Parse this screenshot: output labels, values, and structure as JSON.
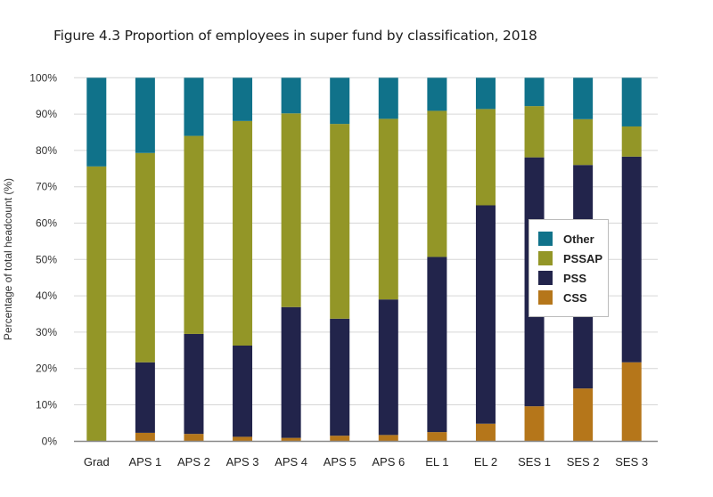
{
  "chart_data": {
    "type": "bar",
    "stacked": true,
    "title": "Figure 4.3 Proportion of employees in super fund by classification, 2018",
    "xlabel": "",
    "ylabel": "Percentage of total headcount (%)",
    "ylim": [
      0,
      100
    ],
    "yticks": [
      "0%",
      "10%",
      "20%",
      "30%",
      "40%",
      "50%",
      "60%",
      "70%",
      "80%",
      "90%",
      "100%"
    ],
    "grid": true,
    "legend_position": "center-right",
    "categories": [
      "Grad",
      "APS 1",
      "APS 2",
      "APS 3",
      "APS 4",
      "APS 5",
      "APS 6",
      "EL 1",
      "EL 2",
      "SES 1",
      "SES 2",
      "SES 3"
    ],
    "series": [
      {
        "name": "CSS",
        "color": "#b5761a",
        "values": [
          0,
          2.3,
          2.0,
          1.2,
          0.9,
          1.5,
          1.7,
          2.5,
          4.8,
          9.6,
          14.5,
          21.7
        ]
      },
      {
        "name": "PSS",
        "color": "#22244b",
        "values": [
          0,
          19.4,
          27.5,
          25.1,
          36.0,
          32.2,
          37.3,
          48.2,
          60.1,
          68.5,
          61.5,
          56.6
        ]
      },
      {
        "name": "PSSAP",
        "color": "#939627",
        "values": [
          75.6,
          57.6,
          54.5,
          61.8,
          53.3,
          53.6,
          49.7,
          40.2,
          26.5,
          14.1,
          12.6,
          8.3
        ]
      },
      {
        "name": "Other",
        "color": "#10728a",
        "values": [
          24.4,
          20.7,
          16.0,
          11.9,
          9.8,
          12.7,
          11.3,
          9.1,
          8.6,
          7.8,
          11.4,
          13.4
        ]
      }
    ],
    "legend": [
      {
        "name": "Other",
        "color": "#10728a"
      },
      {
        "name": "PSSAP",
        "color": "#939627"
      },
      {
        "name": "PSS",
        "color": "#22244b"
      },
      {
        "name": "CSS",
        "color": "#b5761a"
      }
    ]
  }
}
